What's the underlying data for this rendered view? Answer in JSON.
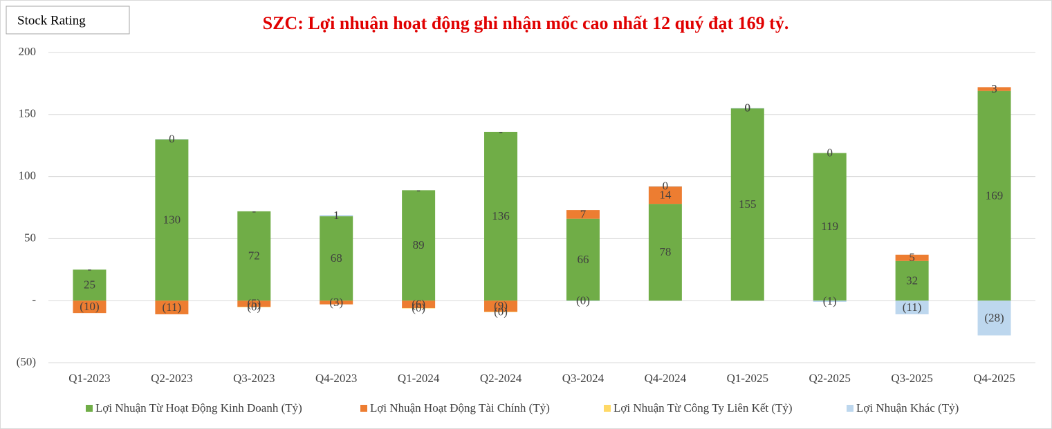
{
  "chart_data": {
    "type": "stacked_bar",
    "badge": "Stock Rating",
    "title": "SZC: Lợi nhuận hoạt động ghi nhận mốc cao nhất 12 quý đạt 169 tỷ.",
    "categories": [
      "Q1-2023",
      "Q2-2023",
      "Q3-2023",
      "Q4-2023",
      "Q1-2024",
      "Q2-2024",
      "Q3-2024",
      "Q4-2024",
      "Q1-2025",
      "Q2-2025",
      "Q3-2025",
      "Q4-2025"
    ],
    "series": [
      {
        "name": "Lợi Nhuận Từ Hoạt Động Kinh Doanh (Tỷ)",
        "color": "#70ad47",
        "values": [
          25,
          130,
          72,
          68,
          89,
          136,
          66,
          78,
          155,
          119,
          32,
          169
        ]
      },
      {
        "name": "Lợi Nhuận Hoạt Động Tài Chính (Tỷ)",
        "color": "#ed7d31",
        "values": [
          -10,
          -11,
          -5,
          -3,
          -6,
          -9,
          7,
          14,
          0,
          0,
          5,
          3
        ],
        "value_labels": [
          "(10)",
          "(11)",
          "(5)",
          "(3)",
          "(6)",
          "(9)",
          "7",
          "14",
          "0",
          "0",
          "5",
          "3"
        ]
      },
      {
        "name": "Lợi Nhuận Từ Công Ty Liên Kết (Tỷ)",
        "color": "#ffd966",
        "values": [
          null,
          null,
          -0.3,
          null,
          -0.3,
          -0.3,
          null,
          null,
          0,
          null,
          null,
          null
        ],
        "value_labels": [
          null,
          null,
          "(0)",
          null,
          "(0)",
          "(0)",
          null,
          null,
          "0",
          null,
          null,
          null
        ]
      },
      {
        "name": "Lợi Nhuận Khác (Tỷ)",
        "color": "#bdd7ee",
        "values": [
          0,
          0.3,
          0,
          1,
          0,
          0,
          -0.3,
          0.3,
          0.4,
          -1,
          -11,
          -28
        ],
        "value_labels": [
          "-",
          "0",
          "-",
          "1",
          "-",
          "-",
          "(0)",
          "0",
          "0",
          "(1)",
          "(11)",
          "(28)"
        ]
      }
    ],
    "ylim": [
      -50,
      200
    ],
    "yticks": [
      {
        "value": -50,
        "label": "(50)"
      },
      {
        "value": 0,
        "label": "-"
      },
      50,
      100,
      150,
      200
    ],
    "grid": true,
    "legend": "bottom"
  }
}
